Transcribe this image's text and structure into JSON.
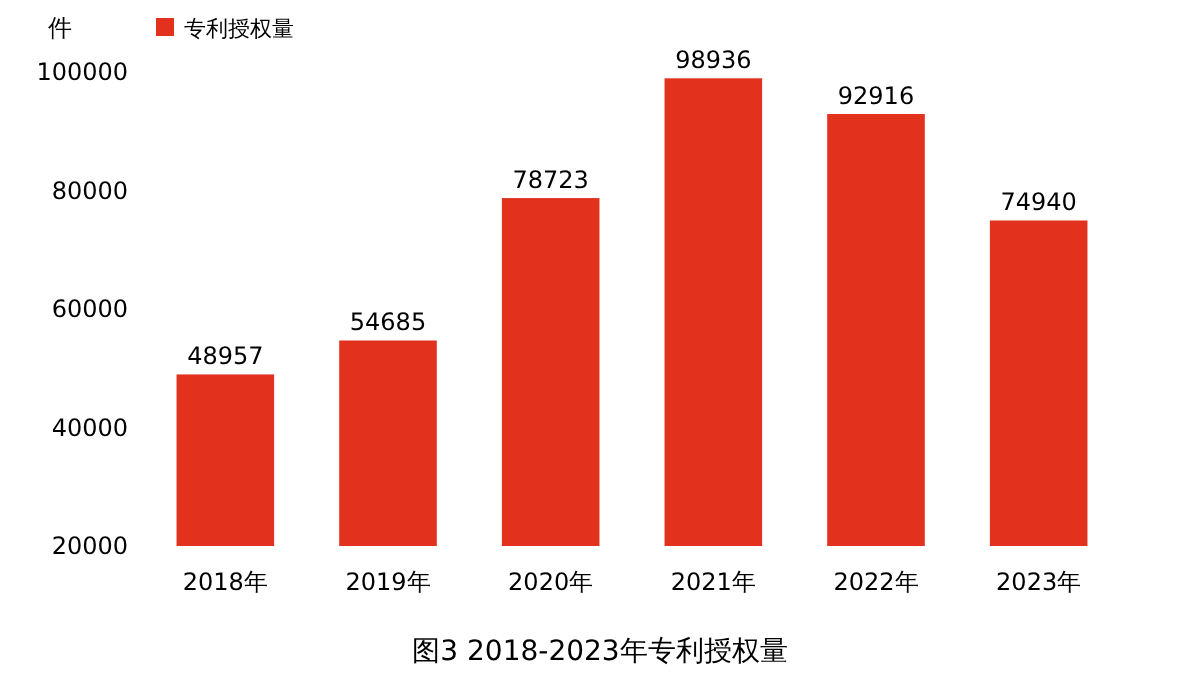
{
  "chart_data": {
    "type": "bar",
    "title": "图3 2018-2023年专利授权量",
    "ylabel": "件",
    "categories": [
      "2018年",
      "2019年",
      "2020年",
      "2021年",
      "2022年",
      "2023年"
    ],
    "series": [
      {
        "name": "专利授权量",
        "color": "#e2321e",
        "values": [
          48957,
          54685,
          78723,
          98936,
          92916,
          74940
        ]
      }
    ],
    "ylim": [
      20000,
      100000
    ],
    "yticks": [
      20000,
      40000,
      60000,
      80000,
      100000
    ],
    "data_labels": true,
    "legend": "top left",
    "grid": false
  }
}
